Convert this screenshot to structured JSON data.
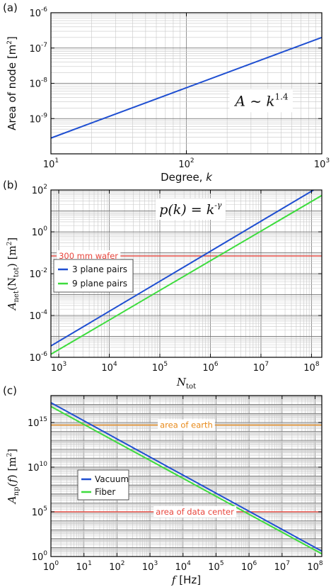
{
  "chart_data": [
    {
      "id": "a",
      "panel_label": "(a)",
      "type": "line",
      "xlabel": "Degree, ",
      "xlabel_var": "k",
      "ylabel": "Area of node [m",
      "ylabel_unit_sup": "2",
      "ylabel_close": "]",
      "xscale": "log",
      "yscale": "log",
      "xlim": [
        10,
        1000
      ],
      "ylim": [
        1e-10,
        1e-06
      ],
      "grid": true,
      "x_ticks": [
        {
          "base": "10",
          "exp": "1",
          "v": 10
        },
        {
          "base": "10",
          "exp": "2",
          "v": 100
        },
        {
          "base": "10",
          "exp": "3",
          "v": 1000
        }
      ],
      "y_ticks": [
        {
          "base": "10",
          "exp": "-9",
          "v": 1e-09
        },
        {
          "base": "10",
          "exp": "-8",
          "v": 1e-08
        },
        {
          "base": "10",
          "exp": "-7",
          "v": 1e-07
        },
        {
          "base": "10",
          "exp": "-6",
          "v": 1e-06
        }
      ],
      "series": [
        {
          "color": "#1f4fd1",
          "x": [
            10,
            1000
          ],
          "y": [
            2.8e-10,
            2e-07
          ]
        }
      ],
      "annotation": {
        "text": "A ~ k",
        "sup": "1.4"
      }
    },
    {
      "id": "b",
      "panel_label": "(b)",
      "type": "line",
      "xlabel_var": "N",
      "xlabel_sub": "tot",
      "ylabel_var": "A",
      "ylabel_sub": "net",
      "ylabel_mid": "(N",
      "ylabel_mid_sub": "tot",
      "ylabel_close": ") [m",
      "ylabel_unit_sup": "2",
      "ylabel_end": "]",
      "xscale": "log",
      "yscale": "log",
      "xlim": [
        700,
        160000000.0
      ],
      "ylim": [
        1e-06,
        100
      ],
      "grid": true,
      "x_ticks": [
        {
          "base": "10",
          "exp": "3",
          "v": 1000.0
        },
        {
          "base": "10",
          "exp": "4",
          "v": 10000.0
        },
        {
          "base": "10",
          "exp": "5",
          "v": 100000.0
        },
        {
          "base": "10",
          "exp": "6",
          "v": 1000000.0
        },
        {
          "base": "10",
          "exp": "7",
          "v": 10000000.0
        },
        {
          "base": "10",
          "exp": "8",
          "v": 100000000.0
        }
      ],
      "y_ticks": [
        {
          "base": "10",
          "exp": "-6",
          "v": 1e-06
        },
        {
          "base": "10",
          "exp": "-4",
          "v": 0.0001
        },
        {
          "base": "10",
          "exp": "-2",
          "v": 0.01
        },
        {
          "base": "10",
          "exp": "0",
          "v": 1
        },
        {
          "base": "10",
          "exp": "2",
          "v": 100
        }
      ],
      "series": [
        {
          "name": "3 plane pairs",
          "color": "#1f4fd1",
          "x": [
            700,
            110000000.0
          ],
          "y": [
            3.5e-06,
            100
          ]
        },
        {
          "name": "9 plane pairs",
          "color": "#3ddc3d",
          "x": [
            700,
            160000000.0
          ],
          "y": [
            1.4e-06,
            55
          ]
        }
      ],
      "hlines": [
        {
          "label": "300 mm wafer",
          "y": 0.07,
          "color": "#e8453c",
          "label_x": 1000
        }
      ],
      "annotation": {
        "text": "p(k) = k",
        "sup": "-γ"
      },
      "legend": "center-left"
    },
    {
      "id": "c",
      "panel_label": "(c)",
      "type": "line",
      "xlabel_var": "f",
      "xlabel_unit": " [Hz]",
      "ylabel_var": "A",
      "ylabel_sub": "np",
      "ylabel_mid": "(f",
      "ylabel_close": ") [m",
      "ylabel_unit_sup": "2",
      "ylabel_end": "]",
      "xscale": "log",
      "yscale": "log",
      "xlim": [
        1,
        160000000.0
      ],
      "ylim": [
        1,
        1e+18
      ],
      "grid": true,
      "x_ticks": [
        {
          "base": "10",
          "exp": "0",
          "v": 1
        },
        {
          "base": "10",
          "exp": "1",
          "v": 10
        },
        {
          "base": "10",
          "exp": "2",
          "v": 100
        },
        {
          "base": "10",
          "exp": "3",
          "v": 1000.0
        },
        {
          "base": "10",
          "exp": "4",
          "v": 10000.0
        },
        {
          "base": "10",
          "exp": "5",
          "v": 100000.0
        },
        {
          "base": "10",
          "exp": "6",
          "v": 1000000.0
        },
        {
          "base": "10",
          "exp": "7",
          "v": 10000000.0
        },
        {
          "base": "10",
          "exp": "8",
          "v": 100000000.0
        }
      ],
      "y_ticks": [
        {
          "base": "10",
          "exp": "0",
          "v": 1
        },
        {
          "base": "10",
          "exp": "5",
          "v": 100000.0
        },
        {
          "base": "10",
          "exp": "10",
          "v": 10000000000.0
        },
        {
          "base": "10",
          "exp": "15",
          "v": 1000000000000000.0
        }
      ],
      "series": [
        {
          "name": "Vacuum",
          "color": "#1f4fd1",
          "x": [
            1,
            160000000.0
          ],
          "y": [
            1.6e+17,
            4.0
          ]
        },
        {
          "name": "Fiber",
          "color": "#3ddc3d",
          "x": [
            1,
            160000000.0
          ],
          "y": [
            6e+16,
            2.0
          ]
        }
      ],
      "hlines": [
        {
          "label": "area of earth",
          "y": 510000000000000.0,
          "color": "#e88a1a",
          "label_x": 2000
        },
        {
          "label": "area of data center",
          "y": 100000.0,
          "color": "#e8453c",
          "label_x": 1500
        }
      ],
      "legend": "center-left"
    }
  ]
}
